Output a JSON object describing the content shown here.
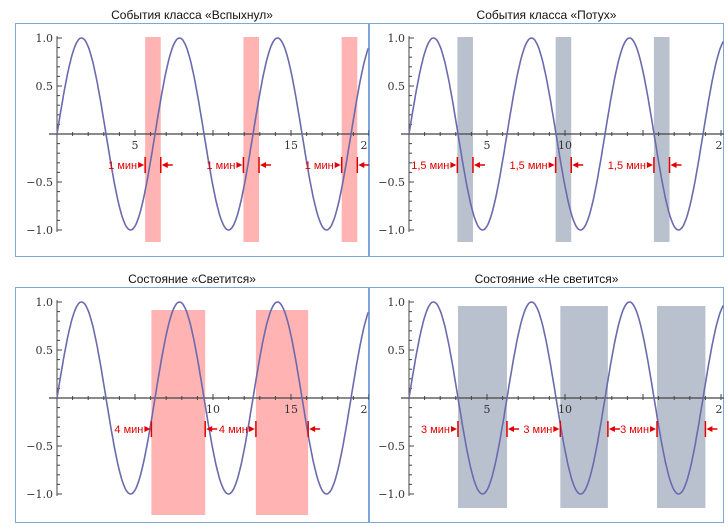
{
  "colors": {
    "curve": "#6a6aae",
    "red_band": "#ffb3b3",
    "gray_band": "#b9c1cf",
    "annot": "#e00000",
    "frame": "#7fa6d9"
  },
  "panels": [
    {
      "title": "События класса «Вспыхнул»",
      "band_color": "red",
      "interval_label": "1 мин",
      "bands": [
        [
          5.65,
          6.65
        ],
        [
          11.95,
          12.95
        ],
        [
          18.25,
          19.25
        ]
      ],
      "x_tick_labels": [
        "5",
        "15",
        "2"
      ]
    },
    {
      "title": "События класса «Потух»",
      "band_color": "gray",
      "interval_label": "1,5 мин",
      "bands": [
        [
          3.1,
          4.1
        ],
        [
          9.4,
          10.4
        ],
        [
          15.7,
          16.7
        ]
      ],
      "x_tick_labels": [
        "5",
        "10",
        "2"
      ]
    },
    {
      "title": "Состояние «Светится»",
      "band_color": "red",
      "interval_label": "4 мин",
      "bands": [
        [
          6.05,
          9.5
        ],
        [
          12.75,
          16.1
        ]
      ],
      "x_tick_labels": [
        "10",
        "15",
        "2"
      ]
    },
    {
      "title": "Состояние «Не светится»",
      "band_color": "gray",
      "interval_label": "3 мин",
      "bands": [
        [
          3.14,
          6.28
        ],
        [
          9.7,
          12.75
        ],
        [
          15.9,
          19.0
        ]
      ],
      "x_tick_labels": [
        "5",
        "10",
        "2"
      ]
    }
  ],
  "chart_data": {
    "type": "line",
    "function": "sin(x)",
    "xlim": [
      0,
      20
    ],
    "ylim": [
      -1,
      1
    ],
    "y_tick_labels": [
      "1.0",
      "0.5",
      "−0.5",
      "−1.0"
    ]
  }
}
